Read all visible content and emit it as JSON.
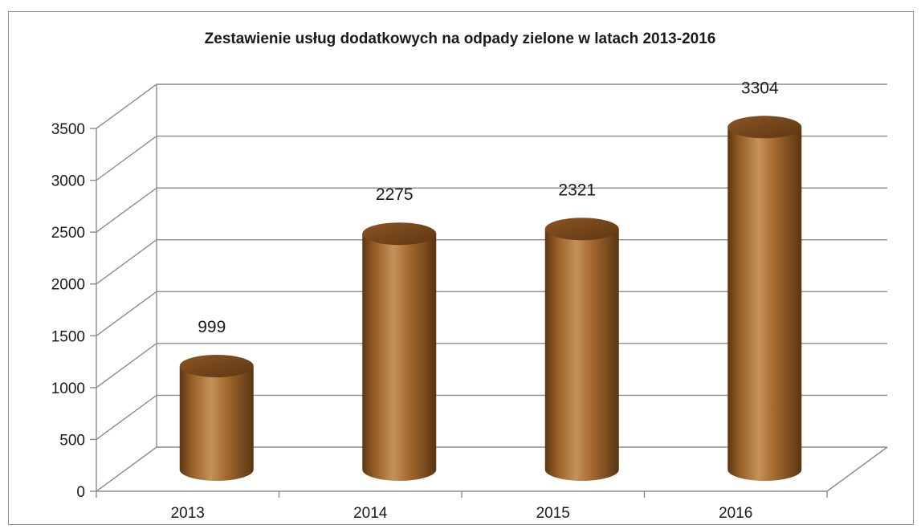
{
  "chart_data": {
    "type": "bar",
    "title": "Zestawienie usług dodatkowych na odpady zielone w latach 2013-2016",
    "categories": [
      "2013",
      "2014",
      "2015",
      "2016"
    ],
    "values": [
      999,
      2275,
      2321,
      3304
    ],
    "data_labels": [
      "999",
      "2275",
      "2321",
      "3304"
    ],
    "ylim": [
      0,
      3500
    ],
    "yticks": [
      "0",
      "500",
      "1000",
      "1500",
      "2000",
      "2500",
      "3000",
      "3500"
    ],
    "xlabel": "",
    "ylabel": "",
    "grid": true,
    "legend": "none",
    "style": "3d-cylinder",
    "colors": {
      "bar_light": "#c08a4e",
      "bar_mid": "#a66b30",
      "bar_dark": "#5a3510",
      "bar_top": "#7a4a1c",
      "grid": "#8c8c8c"
    }
  }
}
